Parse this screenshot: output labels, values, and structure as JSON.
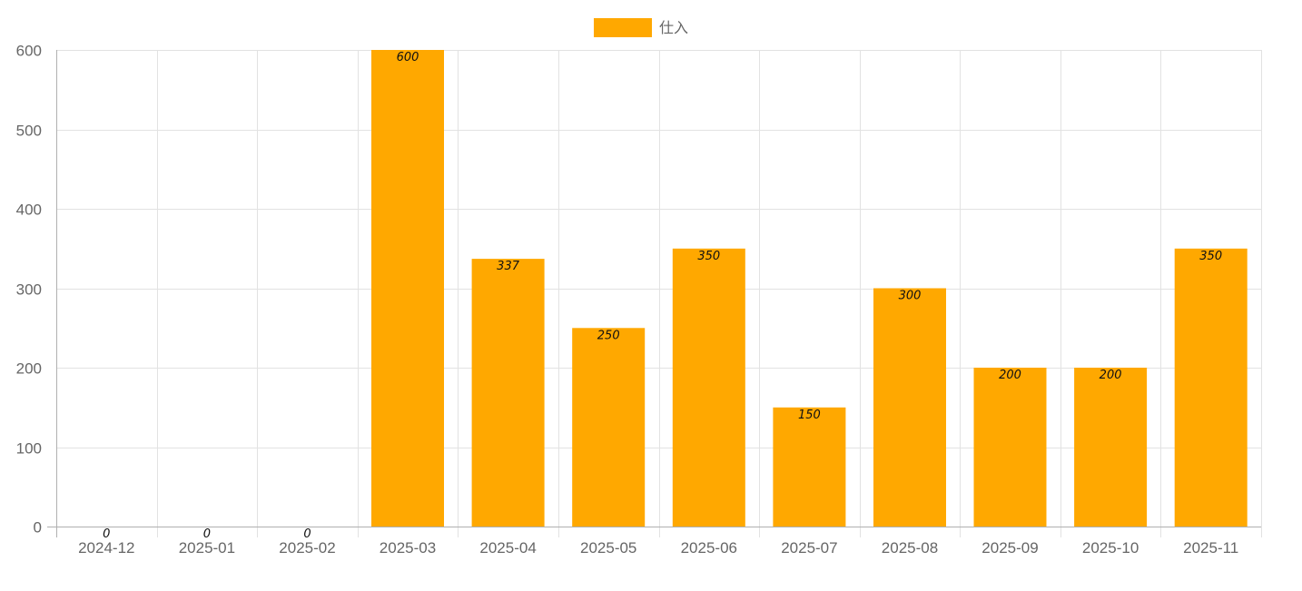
{
  "chart_data": {
    "type": "bar",
    "categories": [
      "2024-12",
      "2025-01",
      "2025-02",
      "2025-03",
      "2025-04",
      "2025-05",
      "2025-06",
      "2025-07",
      "2025-08",
      "2025-09",
      "2025-10",
      "2025-11"
    ],
    "series": [
      {
        "name": "仕入",
        "values": [
          0,
          0,
          0,
          600,
          337,
          250,
          350,
          150,
          300,
          200,
          200,
          350
        ],
        "color": "#FFA800"
      }
    ],
    "ylim": [
      0,
      600
    ],
    "yticks": [
      0,
      100,
      200,
      300,
      400,
      500,
      600
    ],
    "grid": true,
    "legend_position": "top-center",
    "data_labels": true
  }
}
